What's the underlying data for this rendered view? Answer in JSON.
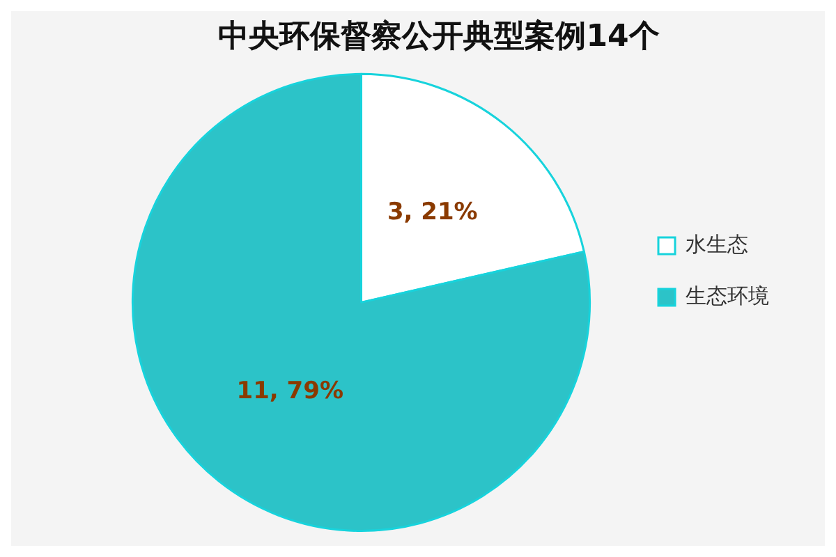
{
  "chart_data": {
    "type": "pie",
    "title": "中央环保督察公开典型案例14个",
    "categories": [
      "水生态",
      "生态环境"
    ],
    "values": [
      3,
      11
    ],
    "colors": [
      "#ffffff",
      "#2cc3c8"
    ],
    "value_labels": [
      "3, 21%",
      "11, 79%"
    ],
    "legend": "right"
  }
}
